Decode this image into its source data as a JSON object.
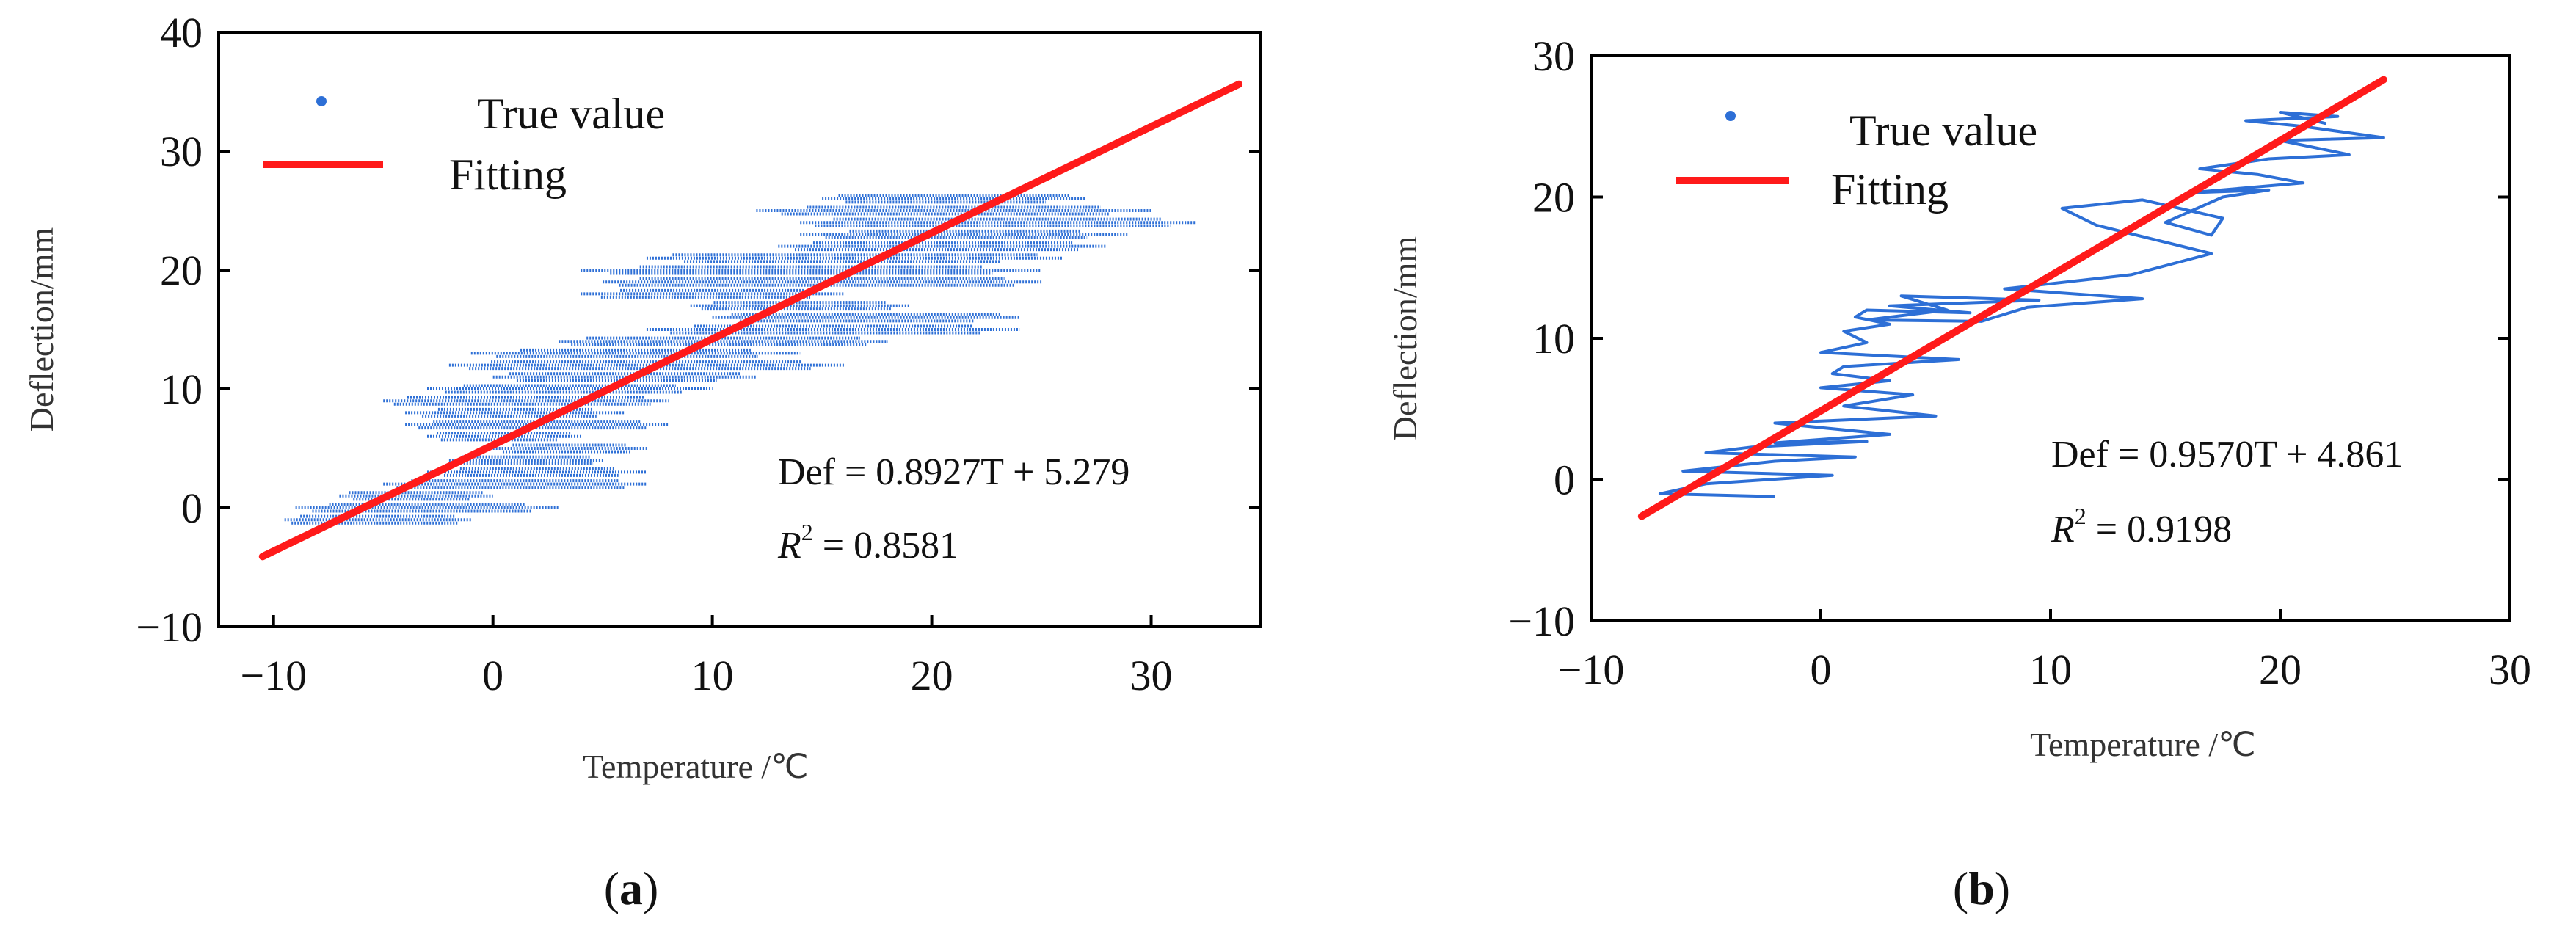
{
  "colors": {
    "true_value": "#2d6fd6",
    "fitting": "#ff1a1a",
    "axis": "#000000"
  },
  "chart_data": [
    {
      "type": "scatter",
      "panel": "a",
      "caption_letter": "a",
      "xlabel": "Temperature /℃",
      "ylabel": "Deflection/mm",
      "xlim": [
        -12.5,
        35
      ],
      "ylim": [
        -10,
        40
      ],
      "xticks": [
        -10,
        0,
        10,
        20,
        30
      ],
      "yticks": [
        -10,
        0,
        10,
        20,
        30,
        40
      ],
      "xtick_labels": [
        "−10",
        "0",
        "10",
        "20",
        "30"
      ],
      "ytick_labels": [
        "−10",
        "0",
        "10",
        "20",
        "30",
        "40"
      ],
      "legend": {
        "true_value": "True value",
        "fitting": "Fitting"
      },
      "equation": "Def = 0.8927T + 5.279",
      "r2_symbol": "R",
      "r2_exponent": "2",
      "r2_text": " = 0.8581",
      "fit": {
        "slope": 0.8927,
        "intercept": 5.279,
        "x_range": [
          -10.5,
          34
        ]
      },
      "series_bands": [
        {
          "y": -1,
          "x_min": -9.5,
          "x_max": -1
        },
        {
          "y": 0,
          "x_min": -9,
          "x_max": 3
        },
        {
          "y": 1,
          "x_min": -7,
          "x_max": 0
        },
        {
          "y": 2,
          "x_min": -5,
          "x_max": 7
        },
        {
          "y": 3,
          "x_min": -3,
          "x_max": 7
        },
        {
          "y": 4,
          "x_min": -2,
          "x_max": 5
        },
        {
          "y": 5,
          "x_min": 0,
          "x_max": 7
        },
        {
          "y": 6,
          "x_min": -3,
          "x_max": 4
        },
        {
          "y": 7,
          "x_min": -4,
          "x_max": 8
        },
        {
          "y": 8,
          "x_min": -4,
          "x_max": 6
        },
        {
          "y": 9,
          "x_min": -5,
          "x_max": 8
        },
        {
          "y": 10,
          "x_min": -3,
          "x_max": 10
        },
        {
          "y": 11,
          "x_min": 0,
          "x_max": 12
        },
        {
          "y": 12,
          "x_min": -2,
          "x_max": 16
        },
        {
          "y": 13,
          "x_min": -1,
          "x_max": 14
        },
        {
          "y": 14,
          "x_min": 3,
          "x_max": 18
        },
        {
          "y": 15,
          "x_min": 7,
          "x_max": 24
        },
        {
          "y": 16,
          "x_min": 10,
          "x_max": 24
        },
        {
          "y": 17,
          "x_min": 9,
          "x_max": 19
        },
        {
          "y": 18,
          "x_min": 4,
          "x_max": 16
        },
        {
          "y": 19,
          "x_min": 5,
          "x_max": 25
        },
        {
          "y": 20,
          "x_min": 4,
          "x_max": 25
        },
        {
          "y": 21,
          "x_min": 7,
          "x_max": 26
        },
        {
          "y": 22,
          "x_min": 13,
          "x_max": 28
        },
        {
          "y": 23,
          "x_min": 14,
          "x_max": 29
        },
        {
          "y": 24,
          "x_min": 14,
          "x_max": 32
        },
        {
          "y": 25,
          "x_min": 12,
          "x_max": 30
        },
        {
          "y": 26,
          "x_min": 15,
          "x_max": 27
        }
      ]
    },
    {
      "type": "line",
      "panel": "b",
      "caption_letter": "b",
      "xlabel": "Temperature /℃",
      "ylabel": "Deflection/mm",
      "xlim": [
        -10,
        30
      ],
      "ylim": [
        -10,
        30
      ],
      "xticks": [
        -10,
        0,
        10,
        20,
        30
      ],
      "yticks": [
        -10,
        0,
        10,
        20,
        30
      ],
      "xtick_labels": [
        "−10",
        "0",
        "10",
        "20",
        "30"
      ],
      "ytick_labels": [
        "−10",
        "0",
        "10",
        "20",
        "30"
      ],
      "legend": {
        "true_value": "True value",
        "fitting": "Fitting"
      },
      "equation": "Def = 0.9570T + 4.861",
      "r2_symbol": "R",
      "r2_exponent": "2",
      "r2_text": " = 0.9198",
      "fit": {
        "slope": 0.957,
        "intercept": 4.861,
        "x_range": [
          -7.8,
          24.5
        ]
      },
      "series": [
        {
          "name": "True value",
          "x": [
            -2,
            -7,
            -5,
            0.5,
            -6,
            -2,
            1.5,
            -5,
            -3,
            2,
            -2,
            3,
            -2,
            5,
            1,
            4,
            0,
            3,
            0.5,
            1,
            6,
            0,
            2,
            1,
            3,
            1.5,
            2,
            6.5,
            3,
            9.5,
            3.5,
            5.5,
            2,
            7,
            9,
            14,
            8,
            13.5,
            17,
            12,
            10.5,
            14,
            17.5,
            17,
            15,
            17.5,
            19.5,
            16,
            21,
            19,
            16.5,
            19.5,
            23,
            20,
            24.5,
            21,
            18.5,
            22.5,
            20,
            22
          ],
          "y": [
            -1.2,
            -1.0,
            -0.3,
            0.3,
            0.6,
            1.3,
            1.6,
            1.9,
            2.3,
            2.7,
            2.6,
            3.2,
            4.0,
            4.5,
            5.2,
            6.0,
            6.5,
            7.0,
            7.5,
            8.0,
            8.5,
            9.0,
            9.7,
            10.5,
            11.0,
            11.5,
            12.0,
            11.8,
            12.3,
            12.7,
            13.0,
            12.0,
            11.3,
            11.2,
            12.2,
            12.8,
            13.5,
            14.5,
            16.0,
            18.0,
            19.2,
            19.8,
            18.5,
            17.3,
            18.2,
            20.0,
            20.5,
            20.3,
            21.0,
            21.6,
            22.0,
            22.7,
            23.0,
            24.0,
            24.2,
            25.0,
            25.4,
            25.7,
            26.0,
            25.2
          ]
        }
      ]
    }
  ]
}
